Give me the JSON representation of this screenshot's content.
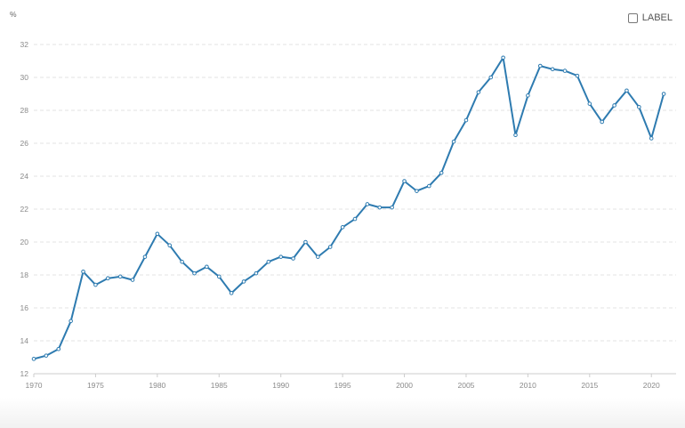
{
  "legend": {
    "label_text": "LABEL"
  },
  "colors": {
    "line": "#2e7bb0",
    "grid": "#e3e3e3",
    "axis": "#cccccc"
  },
  "chart_data": {
    "type": "line",
    "ylabel": "%",
    "xlim": [
      1970,
      2022
    ],
    "ylim": [
      12,
      32
    ],
    "x_ticks": [
      1970,
      1975,
      1980,
      1985,
      1990,
      1995,
      2000,
      2005,
      2010,
      2015,
      2020
    ],
    "y_ticks": [
      12,
      14,
      16,
      18,
      20,
      22,
      24,
      26,
      28,
      30,
      32
    ],
    "grid": true,
    "series": [
      {
        "x": [
          1970,
          1971,
          1972,
          1973,
          1974,
          1975,
          1976,
          1977,
          1978,
          1979,
          1980,
          1981,
          1982,
          1983,
          1984,
          1985,
          1986,
          1987,
          1988,
          1989,
          1990,
          1991,
          1992,
          1993,
          1994,
          1995,
          1996,
          1997,
          1998,
          1999,
          2000,
          2001,
          2002,
          2003,
          2004,
          2005,
          2006,
          2007,
          2008,
          2009,
          2010,
          2011,
          2012,
          2013,
          2014,
          2015,
          2016,
          2017,
          2018,
          2019,
          2020,
          2021
        ],
        "values": [
          12.9,
          13.1,
          13.5,
          15.2,
          18.2,
          17.4,
          17.8,
          17.9,
          17.7,
          19.1,
          20.5,
          19.8,
          18.8,
          18.1,
          18.5,
          17.9,
          16.9,
          17.6,
          18.1,
          18.8,
          19.1,
          19.0,
          20.0,
          19.1,
          19.7,
          20.9,
          21.4,
          22.3,
          22.1,
          22.1,
          23.7,
          23.1,
          23.4,
          24.2,
          26.1,
          27.4,
          29.1,
          30.0,
          31.2,
          26.5,
          28.9,
          30.7,
          30.5,
          30.4,
          30.1,
          28.4,
          27.3,
          28.3,
          29.2,
          28.2,
          26.3,
          29.0
        ]
      }
    ]
  }
}
